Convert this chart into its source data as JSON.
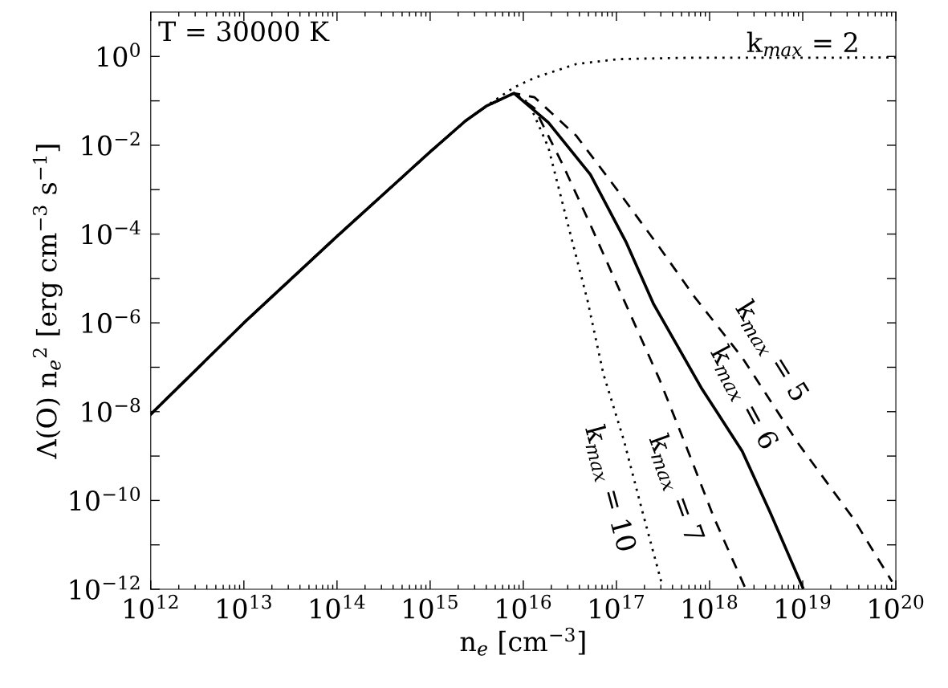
{
  "chart_data": {
    "type": "line",
    "xlabel": "n$_{e}$ [cm$^{−3}$]",
    "ylabel": "Λ(O) n$_{e}$$^{2}$ [erg cm$^{−3}$ s$^{−1}$]",
    "log": "xy",
    "grid": false,
    "legend": false,
    "marker": "none",
    "xlim": [
      1000000000000.0,
      1e+20
    ],
    "ylim": [
      1e-12,
      10
    ],
    "xticks": [
      {
        "value": 1000000000000.0,
        "label": "10$^{12}$"
      },
      {
        "value": 10000000000000.0,
        "label": "10$^{13}$"
      },
      {
        "value": 100000000000000.0,
        "label": "10$^{14}$"
      },
      {
        "value": 1000000000000000.0,
        "label": "10$^{15}$"
      },
      {
        "value": 1e+16,
        "label": "10$^{16}$"
      },
      {
        "value": 1e+17,
        "label": "10$^{17}$"
      },
      {
        "value": 1e+18,
        "label": "10$^{18}$"
      },
      {
        "value": 1e+19,
        "label": "10$^{19}$"
      },
      {
        "value": 1e+20,
        "label": "10$^{20}$"
      }
    ],
    "yticks": [
      {
        "value": 1e-12,
        "label": "10$^{−12}$"
      },
      {
        "value": 1e-11,
        "label": null
      },
      {
        "value": 1e-10,
        "label": "10$^{−10}$"
      },
      {
        "value": 1e-09,
        "label": null
      },
      {
        "value": 1e-08,
        "label": "10$^{−8}$"
      },
      {
        "value": 1e-07,
        "label": null
      },
      {
        "value": 1e-06,
        "label": "10$^{−6}$"
      },
      {
        "value": 1e-05,
        "label": null
      },
      {
        "value": 0.0001,
        "label": "10$^{−4}$"
      },
      {
        "value": 0.001,
        "label": null
      },
      {
        "value": 0.01,
        "label": "10$^{−2}$"
      },
      {
        "value": 0.1,
        "label": null
      },
      {
        "value": 1,
        "label": "10$^{0}$"
      }
    ],
    "series": [
      {
        "color": "#000000",
        "line_style": "dotted",
        "x": [
          1000000000000.0,
          10000000000000.0,
          100000000000000.0,
          1000000000000000.0,
          2400000000000000.0,
          4000000000000000.0,
          5250000000000000.0,
          7940000000000000.0,
          1.32e+16,
          3.72e+16,
          1.05e+17,
          5.75e+17,
          1e+20
        ],
        "values": [
          8.7e-09,
          1e-06,
          8.9e-05,
          0.0071,
          0.0355,
          0.076,
          0.112,
          0.2,
          0.331,
          0.676,
          0.871,
          0.933,
          0.944
        ]
      },
      {
        "color": "#000000",
        "line_style": "dashed",
        "x": [
          1000000000000.0,
          10000000000000.0,
          100000000000000.0,
          1000000000000000.0,
          2400000000000000.0,
          4000000000000000.0,
          7940000000000000.0,
          1.32e+16,
          3.72e+16,
          1.05e+17,
          2.88e+17,
          6.92e+17,
          2.24e+18,
          8.91e+18,
          3.47e+19,
          9.12e+19
        ],
        "values": [
          8.7e-09,
          1e-06,
          8.9e-05,
          0.0071,
          0.0355,
          0.076,
          0.148,
          0.12,
          0.0162,
          0.00091,
          5.1e-05,
          3.8e-06,
          1.66e-07,
          1.95e-09,
          4e-11,
          1.48e-12
        ]
      },
      {
        "color": "#000000",
        "line_style": "solid",
        "x": [
          1000000000000.0,
          10000000000000.0,
          100000000000000.0,
          1000000000000000.0,
          2400000000000000.0,
          4000000000000000.0,
          7940000000000000.0,
          1.86e+16,
          5.25e+16,
          1.26e+17,
          2.51e+17,
          8.13e+17,
          2.24e+18,
          4.47e+18,
          1e+19
        ],
        "values": [
          8.7e-09,
          1e-06,
          8.9e-05,
          0.0071,
          0.0355,
          0.076,
          0.148,
          0.0324,
          0.00219,
          6.8e-05,
          2.63e-06,
          3.47e-08,
          1.29e-09,
          5.4e-11,
          1.1e-12
        ]
      },
      {
        "color": "#000000",
        "line_style": "dashed",
        "x": [
          1000000000000.0,
          10000000000000.0,
          100000000000000.0,
          1000000000000000.0,
          2400000000000000.0,
          4000000000000000.0,
          7940000000000000.0,
          1.32e+16,
          2.63e+16,
          5.25e+16,
          1.26e+17,
          2.88e+17,
          5.75e+17,
          1.12e+18,
          2.4e+18
        ],
        "values": [
          8.7e-09,
          1e-06,
          8.9e-05,
          0.0071,
          0.0355,
          0.076,
          0.148,
          0.068,
          0.0038,
          0.000162,
          2.63e-06,
          5.5e-08,
          1.45e-09,
          4e-11,
          1.1e-12
        ]
      },
      {
        "color": "#000000",
        "line_style": "dotted",
        "x": [
          1000000000000.0,
          10000000000000.0,
          100000000000000.0,
          1000000000000000.0,
          2400000000000000.0,
          4000000000000000.0,
          7940000000000000.0,
          1.15e+16,
          1.86e+16,
          3.02e+16,
          4.9e+16,
          7.24e+16,
          1.2e+17,
          1.91e+17,
          3.09e+17
        ],
        "values": [
          8.7e-09,
          1e-06,
          8.9e-05,
          0.0071,
          0.0355,
          0.076,
          0.148,
          0.089,
          0.0089,
          0.000162,
          3.16e-06,
          7.1e-08,
          2.29e-09,
          5.4e-11,
          1.26e-12
        ]
      }
    ],
    "annotations": [
      "T = 30000 K",
      {
        "text": "k$_{max}$ = 2",
        "x": 4.4e+18,
        "y": 0.94
      },
      {
        "text": "k$_{max}$ = 5",
        "x": 2e+18,
        "y": 2.2e-07
      },
      {
        "text": "k$_{max}$ = 6",
        "x": 1e+18,
        "y": 2e-08
      },
      {
        "text": "k$_{max}$ = 7",
        "x": 8.5e+17,
        "y": 1.8e-10
      },
      {
        "text": "k$_{max}$ = 10",
        "x": 1.66e+17,
        "y": 1.8e-10
      }
    ]
  }
}
